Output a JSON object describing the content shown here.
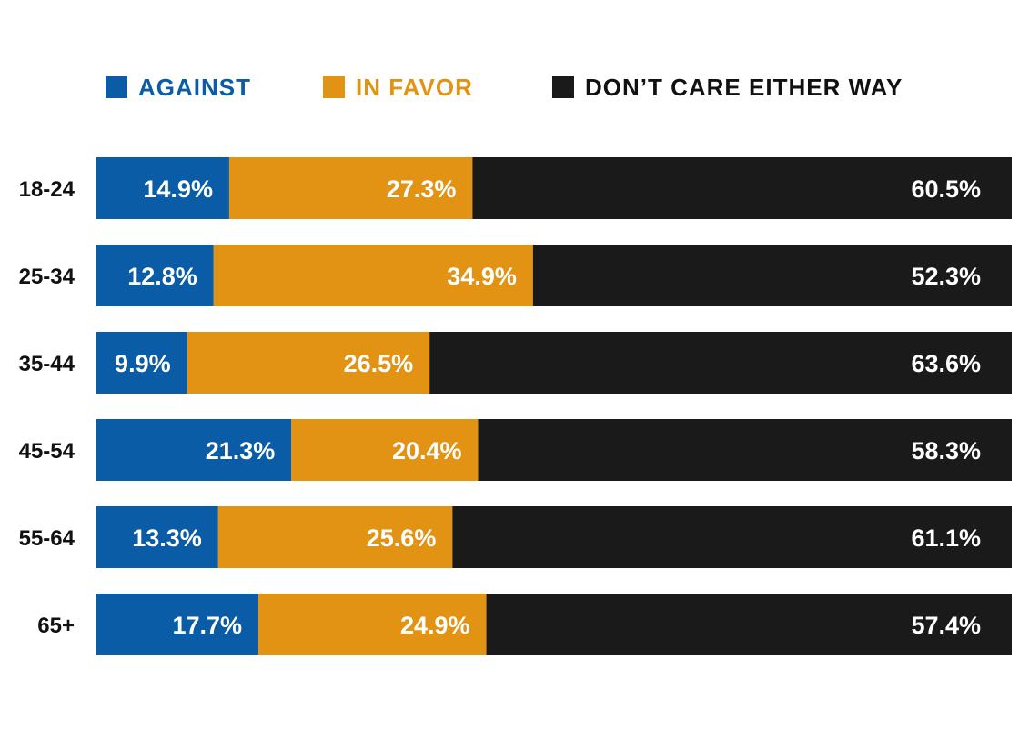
{
  "chart_data": {
    "type": "bar",
    "stacked": true,
    "orientation": "horizontal",
    "title": "",
    "xlabel": "",
    "ylabel": "",
    "legend_position": "top",
    "grid": false,
    "categories": [
      "18-24",
      "25-34",
      "35-44",
      "45-54",
      "55-64",
      "65+"
    ],
    "series": [
      {
        "name": "AGAINST",
        "color": "#0a5ca6",
        "values": [
          14.9,
          12.8,
          9.9,
          21.3,
          13.3,
          17.7
        ],
        "labels": [
          "14.9%",
          "12.8%",
          "9.9%",
          "21.3%",
          "13.3%",
          "17.7%"
        ]
      },
      {
        "name": "IN FAVOR",
        "color": "#e29314",
        "values": [
          27.3,
          34.9,
          26.5,
          20.4,
          25.6,
          24.9
        ],
        "labels": [
          "27.3%",
          "34.9%",
          "26.5%",
          "20.4%",
          "25.6%",
          "24.9%"
        ]
      },
      {
        "name": "DON’T CARE EITHER WAY",
        "color": "#1a1a1a",
        "values": [
          60.5,
          52.3,
          63.6,
          58.3,
          61.1,
          57.4
        ],
        "labels": [
          "60.5%",
          "52.3%",
          "63.6%",
          "58.3%",
          "61.1%",
          "57.4%"
        ]
      }
    ]
  }
}
